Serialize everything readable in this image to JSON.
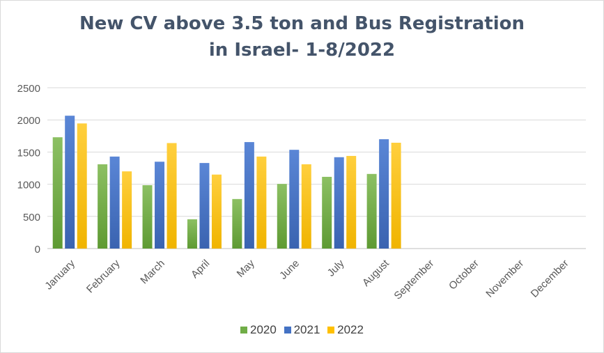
{
  "chart_data": {
    "type": "bar",
    "title_lines": [
      "New CV above 3.5 ton and Bus Registration",
      "in Israel- 1-8/2022"
    ],
    "categories": [
      "January",
      "February",
      "March",
      "April",
      "May",
      "June",
      "July",
      "August",
      "September",
      "October",
      "November",
      "December"
    ],
    "series": [
      {
        "name": "2020",
        "color": "#70ad47",
        "values": [
          1730,
          1310,
          985,
          455,
          770,
          1005,
          1115,
          1160,
          null,
          null,
          null,
          null
        ]
      },
      {
        "name": "2021",
        "color": "#4472c4",
        "values": [
          2065,
          1430,
          1350,
          1330,
          1655,
          1535,
          1420,
          1700,
          null,
          null,
          null,
          null
        ]
      },
      {
        "name": "2022",
        "color": "#ffc000",
        "values": [
          1945,
          1200,
          1640,
          1150,
          1430,
          1310,
          1440,
          1645,
          null,
          null,
          null,
          null
        ]
      }
    ],
    "yticks": [
      0,
      500,
      1000,
      1500,
      2000,
      2500
    ],
    "ylim": [
      0,
      2500
    ],
    "grid": true,
    "legend": "bottom"
  }
}
